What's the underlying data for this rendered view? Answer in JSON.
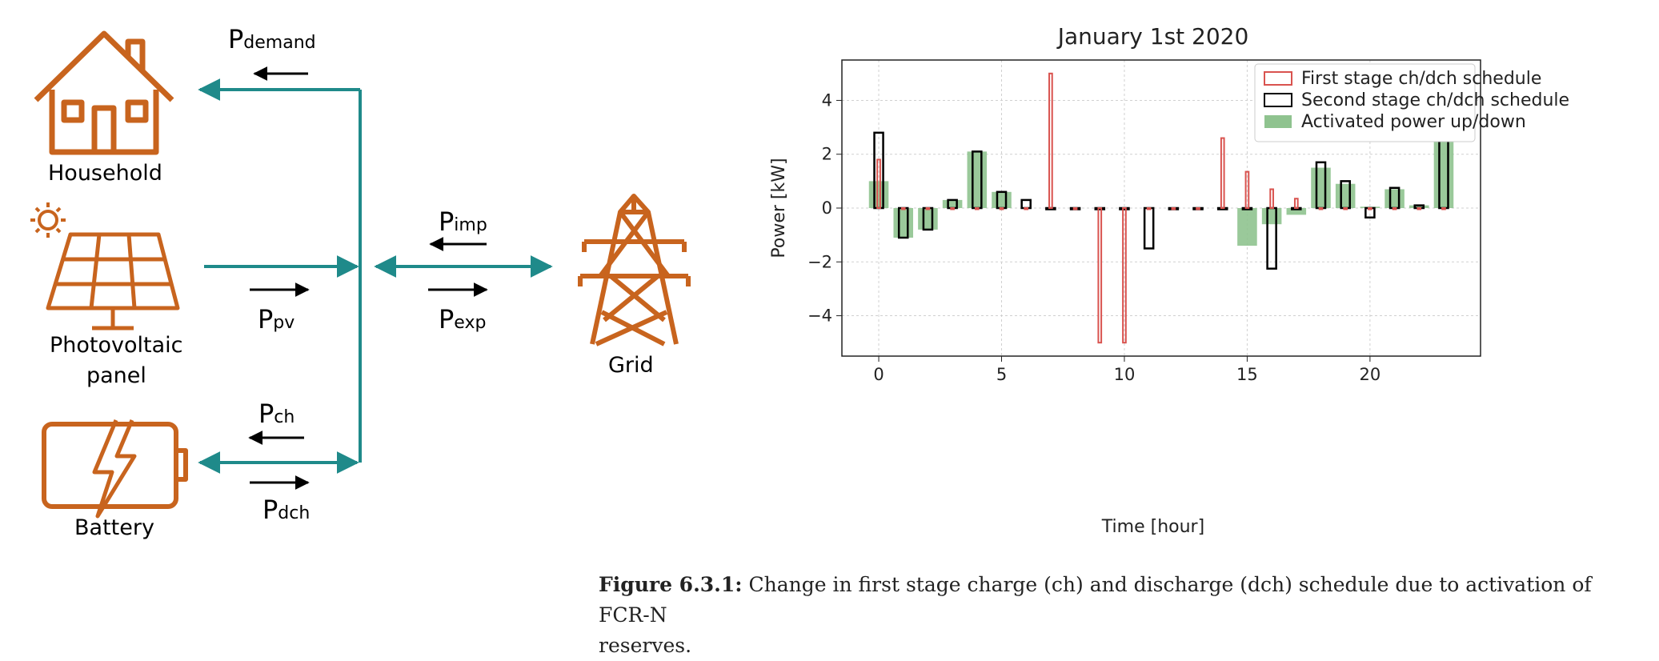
{
  "diagram": {
    "nodes": {
      "household": "Household",
      "pv": "Photovoltaic",
      "pv2": "panel",
      "battery": "Battery",
      "grid": "Grid"
    },
    "flows": {
      "demand": {
        "sym": "P",
        "sub": "demand"
      },
      "pv": {
        "sym": "P",
        "sub": "pv"
      },
      "imp": {
        "sym": "P",
        "sub": "imp"
      },
      "exp": {
        "sym": "P",
        "sub": "exp"
      },
      "ch": {
        "sym": "P",
        "sub": "ch"
      },
      "dch": {
        "sym": "P",
        "sub": "dch"
      }
    },
    "colors": {
      "icon": "#c8641e",
      "line": "#1f8a8a",
      "arrow": "#000000"
    },
    "icons": [
      "house-icon",
      "sun-icon",
      "solar-panel-icon",
      "battery-icon",
      "transmission-tower-icon"
    ]
  },
  "chart_data": {
    "type": "bar",
    "title": "January 1st 2020",
    "xlabel": "Time [hour]",
    "ylabel": "Power [kW]",
    "xlim": [
      -1.5,
      24.5
    ],
    "ylim": [
      -5.5,
      5.5
    ],
    "xticks": [
      0,
      5,
      10,
      15,
      20
    ],
    "yticks": [
      -4,
      -2,
      0,
      2,
      4
    ],
    "grid": true,
    "legend_position": "top-right",
    "x": [
      0,
      1,
      2,
      3,
      4,
      5,
      6,
      7,
      8,
      9,
      10,
      11,
      12,
      13,
      14,
      15,
      16,
      17,
      18,
      19,
      20,
      21,
      22,
      23
    ],
    "series": [
      {
        "name": "Activated power up/down",
        "style": "filled",
        "color": "#8fc38f",
        "values": [
          1.0,
          -1.1,
          -0.8,
          0.3,
          2.1,
          0.6,
          0,
          0,
          0,
          0,
          0,
          0,
          0,
          0,
          0,
          -1.4,
          -0.6,
          -0.25,
          1.5,
          0.9,
          0.05,
          0.7,
          0.1,
          2.9
        ]
      },
      {
        "name": "Second stage ch/dch schedule",
        "style": "outline",
        "color": "#000000",
        "values": [
          2.8,
          -1.1,
          -0.8,
          0.3,
          2.1,
          0.6,
          0.3,
          0,
          0,
          0,
          0,
          -1.5,
          0,
          0,
          0,
          0,
          -2.25,
          0,
          1.7,
          1.0,
          -0.35,
          0.75,
          0.1,
          2.9
        ]
      },
      {
        "name": "First stage ch/dch schedule",
        "style": "outline",
        "color": "#d9534f",
        "values": [
          1.8,
          0,
          0,
          0,
          0,
          0,
          0,
          5.0,
          0,
          -5.0,
          -5.0,
          0,
          0,
          0,
          2.6,
          1.35,
          0.7,
          0.35,
          0,
          0,
          0,
          0,
          0,
          0
        ]
      }
    ]
  },
  "caption": {
    "label": "Figure 6.3.1:",
    "line1": "Change in first stage charge (ch) and discharge (dch) schedule due to activation of FCR-N",
    "line2": "reserves."
  }
}
